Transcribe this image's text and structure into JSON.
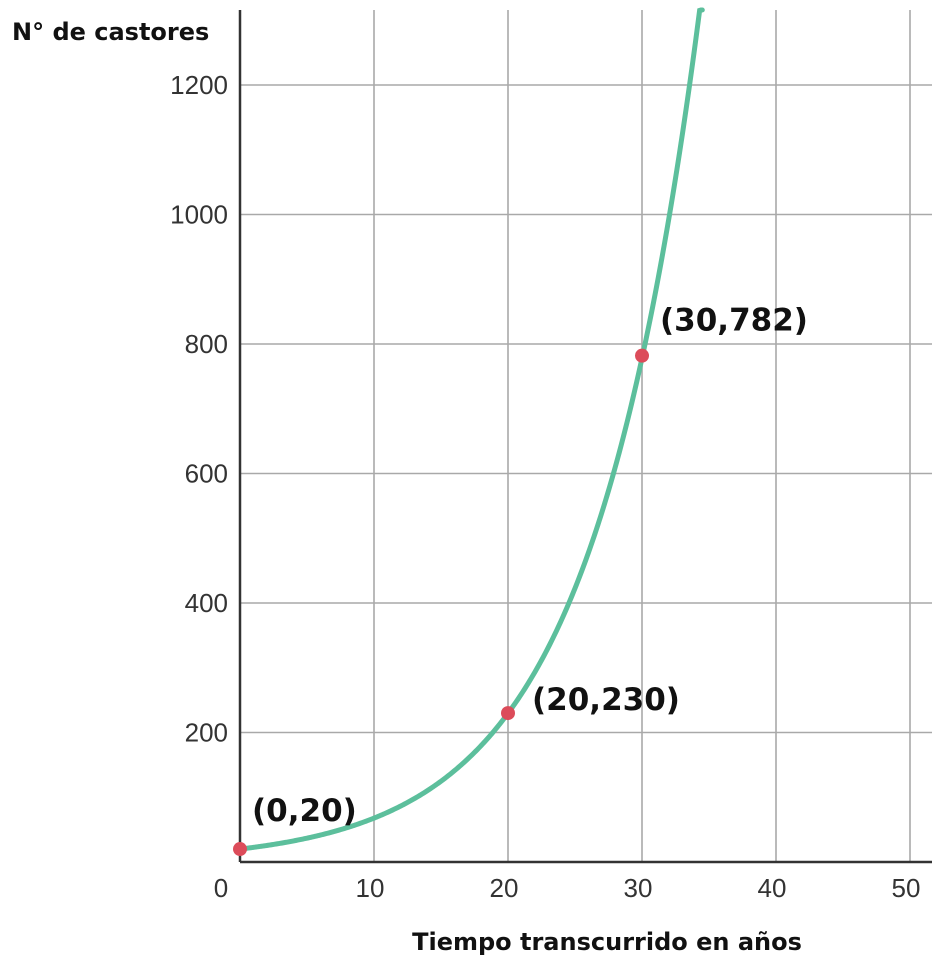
{
  "chart_data": {
    "type": "line",
    "ylabel": "N° de castores",
    "xlabel": "Tiempo transcurrido en años",
    "xlim": [
      0,
      50
    ],
    "ylim": [
      0,
      1200
    ],
    "x_ticks": [
      0,
      10,
      20,
      30,
      40,
      50
    ],
    "y_ticks": [
      200,
      400,
      600,
      800,
      1000,
      1200
    ],
    "x_tick_labels": [
      "0",
      "10",
      "20",
      "30",
      "40",
      "50"
    ],
    "y_tick_labels": [
      "200",
      "400",
      "600",
      "800",
      "1000",
      "1200"
    ],
    "grid": true,
    "curve": {
      "model": "exponential",
      "a": 20,
      "b": 1.1298,
      "x_start": 0,
      "x_end": 34.5
    },
    "points": [
      {
        "x": 0,
        "y": 20,
        "label": "(0,20)"
      },
      {
        "x": 20,
        "y": 230,
        "label": "(20,230)"
      },
      {
        "x": 30,
        "y": 782,
        "label": "(30,782)"
      }
    ],
    "colors": {
      "curve": "#5cbf9c",
      "points": "#dc4c5a",
      "grid": "#a9a9a9",
      "axis": "#333333"
    }
  }
}
